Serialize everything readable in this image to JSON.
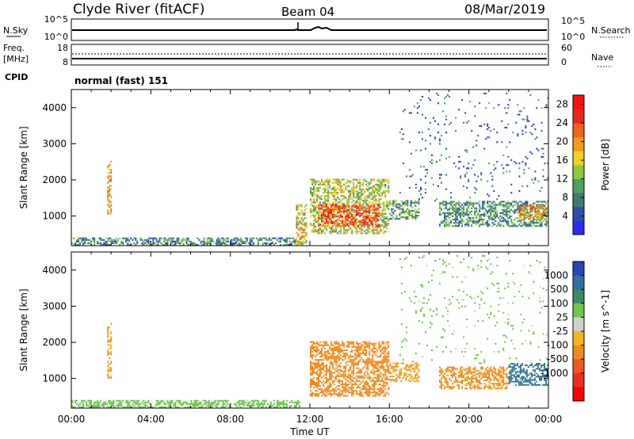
{
  "header": {
    "title": "Clyde River (fitACF)",
    "beam": "Beam 04",
    "date": "08/Mar/2019",
    "cpid_value": "normal (fast) 151"
  },
  "labels": {
    "nsky": "N.Sky",
    "freq": "Freq.",
    "mhz": "[MHz]",
    "cpid": "CPID",
    "nsearch": "N.Search",
    "nave": "Nave"
  },
  "ticks": {
    "nsky_top": "10^5",
    "nsky_bottom": "10^0",
    "nsearch_top": "10^5",
    "nsearch_bottom": "10^0",
    "freq_top": "18",
    "freq_bottom": "8",
    "nave_top": "60",
    "nave_bottom": "0"
  },
  "chart_data": [
    {
      "type": "heatmap",
      "name": "power",
      "xlabel": "",
      "ylabel": "Slant Range [km]",
      "xlim": [
        "00:00",
        "24:00"
      ],
      "ylim": [
        180,
        4500
      ],
      "xticks": [
        "00:00",
        "04:00",
        "08:00",
        "12:00",
        "16:00",
        "20:00",
        "00:00"
      ],
      "yticks": [
        1000,
        2000,
        3000,
        4000
      ],
      "colorbar": {
        "label": "Power [dB]",
        "ticks": [
          4,
          8,
          12,
          16,
          20,
          24,
          28
        ],
        "range": [
          0,
          30
        ],
        "colors": [
          "#2b2bff",
          "#2b4fa8",
          "#3c7a73",
          "#4fa060",
          "#8ccc3a",
          "#f4d21e",
          "#f59a1c",
          "#f3621a",
          "#e8281e",
          "#ff1010"
        ]
      },
      "regions": [
        {
          "t_start": 0.0,
          "t_end": 11.5,
          "r_start": 180,
          "r_end": 400,
          "value": 8
        },
        {
          "t_start": 11.3,
          "t_end": 11.8,
          "r_start": 200,
          "r_end": 1300,
          "value": 16
        },
        {
          "t_start": 12.0,
          "t_end": 16.0,
          "r_start": 500,
          "r_end": 2000,
          "value": 14
        },
        {
          "t_start": 12.4,
          "t_end": 15.5,
          "r_start": 700,
          "r_end": 1300,
          "value": 24
        },
        {
          "t_start": 16.0,
          "t_end": 17.5,
          "r_start": 900,
          "r_end": 1400,
          "value": 10
        },
        {
          "t_start": 18.5,
          "t_end": 24.0,
          "r_start": 700,
          "r_end": 1400,
          "value": 9
        },
        {
          "t_start": 22.5,
          "t_end": 24.0,
          "r_start": 900,
          "r_end": 1300,
          "value": 20
        },
        {
          "t_start": 1.8,
          "t_end": 2.0,
          "r_start": 1000,
          "r_end": 2500,
          "value": 18
        },
        {
          "t_start": 16.5,
          "t_end": 24.0,
          "r_start": 1400,
          "r_end": 4400,
          "value": 6
        }
      ]
    },
    {
      "type": "heatmap",
      "name": "velocity",
      "xlabel": "Time UT",
      "ylabel": "Slant Range [km]",
      "xlim": [
        "00:00",
        "24:00"
      ],
      "ylim": [
        180,
        4500
      ],
      "xticks": [
        "00:00",
        "04:00",
        "08:00",
        "12:00",
        "16:00",
        "20:00",
        "00:00"
      ],
      "yticks": [
        1000,
        2000,
        3000,
        4000
      ],
      "colorbar": {
        "label": "Velocity [m s^-1]",
        "ticks": [
          1000,
          500,
          100,
          25,
          -25,
          -100,
          -500,
          -1000
        ],
        "colors": [
          "#2844b8",
          "#2f6fa8",
          "#3a8a6a",
          "#6cc84a",
          "#cfcfcf",
          "#f4b81e",
          "#f08a1c",
          "#ef5a1c",
          "#e83020",
          "#ff0000"
        ]
      },
      "regions": [
        {
          "t_start": 0.0,
          "t_end": 11.5,
          "r_start": 180,
          "r_end": 400,
          "value": 60
        },
        {
          "t_start": 12.0,
          "t_end": 16.0,
          "r_start": 500,
          "r_end": 2000,
          "value": -300
        },
        {
          "t_start": 16.0,
          "t_end": 17.5,
          "r_start": 900,
          "r_end": 1400,
          "value": -100
        },
        {
          "t_start": 18.5,
          "t_end": 22.0,
          "r_start": 700,
          "r_end": 1300,
          "value": -150
        },
        {
          "t_start": 22.0,
          "t_end": 24.0,
          "r_start": 800,
          "r_end": 1400,
          "value": 600
        },
        {
          "t_start": 1.8,
          "t_end": 2.0,
          "r_start": 1000,
          "r_end": 2500,
          "value": -100
        },
        {
          "t_start": 16.5,
          "t_end": 24.0,
          "r_start": 1400,
          "r_end": 4400,
          "value": 50
        }
      ]
    }
  ]
}
